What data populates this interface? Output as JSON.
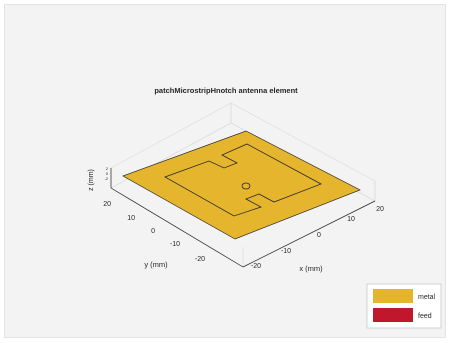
{
  "figure": {
    "title": "patchMicrostripHnotch antenna element",
    "xlabel": "x (mm)",
    "ylabel": "y (mm)",
    "zlabel": "z (mm)",
    "x_ticks": [
      "-20",
      "-10",
      "0",
      "10",
      "20"
    ],
    "y_ticks": [
      "20",
      "10",
      "0",
      "-10",
      "-20"
    ],
    "z_ticks": [
      "2",
      "0",
      "-2"
    ]
  },
  "legend": {
    "items": [
      {
        "label": "metal",
        "color": "#e6b52e"
      },
      {
        "label": "feed",
        "color": "#c1172c"
      }
    ]
  },
  "colors": {
    "background": "#f3f3f3",
    "ground_plane": "#e6b52e",
    "axes_edge": "#262626",
    "grid": "#d9d9d9"
  }
}
